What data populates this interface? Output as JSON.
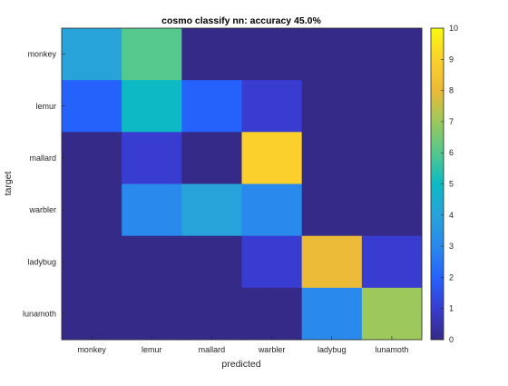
{
  "chart_data": {
    "type": "heatmap",
    "title": "cosmo classify nn: accuracy 45.0%",
    "xlabel": "predicted",
    "ylabel": "target",
    "x_categories": [
      "monkey",
      "lemur",
      "mallard",
      "warbler",
      "ladybug",
      "lunamoth"
    ],
    "y_categories": [
      "monkey",
      "lemur",
      "mallard",
      "warbler",
      "ladybug",
      "lunamoth"
    ],
    "values": [
      [
        4,
        6,
        0,
        0,
        0,
        0
      ],
      [
        2,
        5,
        2,
        1,
        0,
        0
      ],
      [
        0,
        1,
        0,
        9,
        0,
        0
      ],
      [
        0,
        3,
        4,
        3,
        0,
        0
      ],
      [
        0,
        0,
        0,
        1,
        8,
        1
      ],
      [
        0,
        0,
        0,
        0,
        3,
        7
      ]
    ],
    "colorbar": {
      "range": [
        0,
        10
      ],
      "ticks": [
        "0",
        "1",
        "2",
        "3",
        "4",
        "5",
        "6",
        "7",
        "8",
        "9",
        "10"
      ],
      "colormap": "parula"
    },
    "grid": false
  }
}
